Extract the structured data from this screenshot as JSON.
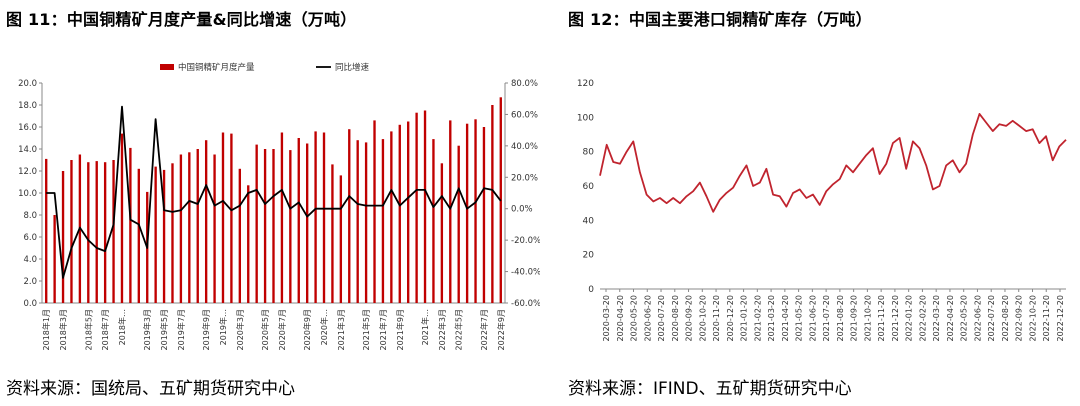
{
  "left": {
    "title": "图 11：中国铜精矿月度产量&同比增速（万吨）",
    "source": "资料来源：国统局、五矿期货研究中心"
  },
  "right": {
    "title": "图 12：中国主要港口铜精矿库存（万吨）",
    "source": "资料来源：IFIND、五矿期货研究中心"
  },
  "chart_data": [
    {
      "type": "bar",
      "subtype": "bar+line dual-axis",
      "title": "",
      "ylim_left": [
        0,
        20
      ],
      "yticks_left": [
        "0.0",
        "2.0",
        "4.0",
        "6.0",
        "8.0",
        "10.0",
        "12.0",
        "14.0",
        "16.0",
        "18.0",
        "20.0"
      ],
      "ylim_right": [
        -60,
        80
      ],
      "yticks_right": [
        "-60.0%",
        "-40.0%",
        "-20.0%",
        "0.0%",
        "20.0%",
        "40.0%",
        "60.0%",
        "80.0%"
      ],
      "legend_placement": "top-center",
      "bar_color": "#C00000",
      "line_color": "#000000",
      "x_tick_labels": [
        "2018年1月",
        "2018年3月",
        "2018年5月",
        "2018年7月",
        "2018年…",
        "2019年3月",
        "2019年5月",
        "2019年7月",
        "2019年9月",
        "2019年…",
        "2020年3月",
        "2020年5月",
        "2020年7月",
        "2020年9月",
        "2020年…",
        "2021年3月",
        "2021年5月",
        "2021年7月",
        "2021年9月",
        "2021年…",
        "2022年3月",
        "2022年5月",
        "2022年7月",
        "2022年9月"
      ],
      "series": [
        {
          "name": "中国铜精矿月度产量",
          "axis": "left",
          "values": [
            13.1,
            8.0,
            12.0,
            13.0,
            13.5,
            12.8,
            12.9,
            12.8,
            13.0,
            15.4,
            14.1,
            12.2,
            10.1,
            12.4,
            12.1,
            12.7,
            13.5,
            13.7,
            14.0,
            14.8,
            13.5,
            15.5,
            15.4,
            12.2,
            10.7,
            14.4,
            14.0,
            14.0,
            15.5,
            13.9,
            15.0,
            14.5,
            15.6,
            15.5,
            12.6,
            11.6,
            15.8,
            14.8,
            14.6,
            16.6,
            14.9,
            15.6,
            16.2,
            16.5,
            17.3,
            17.5,
            14.9,
            12.7,
            16.6,
            14.3,
            16.3,
            16.7,
            16.0,
            18.0,
            18.7
          ]
        },
        {
          "name": "同比增速",
          "axis": "right",
          "values": [
            10,
            10,
            -44,
            -25,
            -12,
            -20,
            -25,
            -27,
            -10,
            65,
            -7,
            -10,
            -25,
            57,
            -1,
            -2,
            -1,
            5,
            3,
            15,
            2,
            5,
            -1,
            2,
            10,
            12,
            3,
            8,
            12,
            0,
            4,
            -5,
            0,
            0,
            0,
            0,
            8,
            3,
            2,
            2,
            2,
            12,
            2,
            7,
            12,
            12,
            1,
            8,
            0,
            13,
            0,
            4,
            13,
            12,
            5
          ]
        }
      ]
    },
    {
      "type": "line",
      "title": "",
      "ylim": [
        0,
        120
      ],
      "yticks": [
        "0",
        "20",
        "40",
        "60",
        "80",
        "100",
        "120"
      ],
      "line_color": "#C0242E",
      "x_tick_labels": [
        "2020-03-20",
        "2020-04-20",
        "2020-05-20",
        "2020-06-20",
        "2020-07-20",
        "2020-08-20",
        "2020-09-20",
        "2020-10-20",
        "2020-11-20",
        "2020-12-20",
        "2021-01-20",
        "2021-02-20",
        "2021-03-20",
        "2021-04-20",
        "2021-05-20",
        "2021-06-20",
        "2021-07-20",
        "2021-08-20",
        "2021-09-20",
        "2021-10-20",
        "2021-11-20",
        "2021-12-20",
        "2022-01-20",
        "2022-02-20",
        "2022-03-20",
        "2022-04-20",
        "2022-05-20",
        "2022-06-20",
        "2022-07-20",
        "2022-08-20",
        "2022-09-20",
        "2022-10-20",
        "2022-11-20",
        "2022-12-20"
      ],
      "series": [
        {
          "name": "",
          "values": [
            66,
            84,
            74,
            73,
            80,
            86,
            68,
            55,
            51,
            53,
            50,
            53,
            50,
            54,
            57,
            62,
            54,
            45,
            52,
            56,
            59,
            66,
            72,
            60,
            62,
            70,
            55,
            54,
            48,
            56,
            58,
            53,
            55,
            49,
            57,
            61,
            64,
            72,
            68,
            73,
            78,
            82,
            67,
            73,
            85,
            88,
            70,
            86,
            82,
            72,
            58,
            60,
            72,
            75,
            68,
            73,
            90,
            102,
            97,
            92,
            96,
            95,
            98,
            95,
            92,
            93,
            85,
            89,
            75,
            83,
            87
          ]
        }
      ]
    }
  ]
}
